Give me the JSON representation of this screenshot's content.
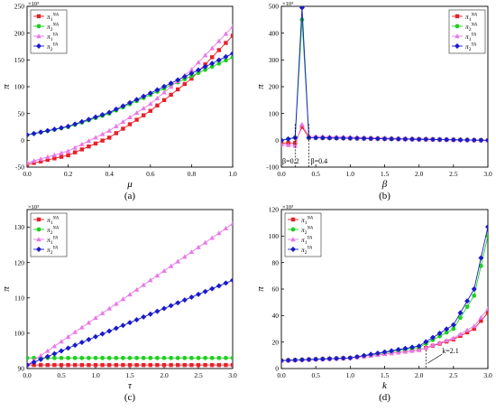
{
  "chart_data": [
    {
      "type": "line",
      "panel_label": "(a)",
      "xlabel": "μ",
      "ylabel": "π",
      "exponent": "×10³",
      "xlim": [
        0,
        1.0
      ],
      "ylim": [
        -50,
        250
      ],
      "xticks": [
        0.0,
        0.2,
        0.4,
        0.6,
        0.8,
        1.0
      ],
      "yticks": [
        -50,
        0,
        50,
        100,
        150,
        200,
        250
      ],
      "legend_position": "top-left",
      "series": [
        {
          "name": "π₁ᴺᴬ",
          "base": "π",
          "sub": "1",
          "sup": "NA",
          "color": "#e8202a",
          "marker": "square",
          "x": [
            0,
            0.2,
            0.4,
            0.6,
            0.8,
            1.0
          ],
          "y": [
            -45,
            -28,
            5,
            55,
            115,
            195
          ]
        },
        {
          "name": "π₂ᴺᴬ",
          "base": "π",
          "sub": "2",
          "sup": "NA",
          "color": "#1ed01e",
          "marker": "circle",
          "x": [
            0,
            0.2,
            0.4,
            0.6,
            0.8,
            1.0
          ],
          "y": [
            10,
            25,
            50,
            85,
            120,
            155
          ]
        },
        {
          "name": "π₁ʸᴬ",
          "base": "π",
          "sub": "1",
          "sup": "YA",
          "color": "#e878e8",
          "marker": "triangle",
          "x": [
            0,
            0.2,
            0.4,
            0.6,
            0.8,
            1.0
          ],
          "y": [
            -42,
            -20,
            18,
            68,
            132,
            212
          ]
        },
        {
          "name": "π₂ʸᴬ",
          "base": "π",
          "sub": "2",
          "sup": "YA",
          "color": "#1a1acc",
          "marker": "diamond",
          "x": [
            0,
            0.2,
            0.4,
            0.6,
            0.8,
            1.0
          ],
          "y": [
            10,
            26,
            52,
            88,
            125,
            162
          ]
        }
      ]
    },
    {
      "type": "line",
      "panel_label": "(b)",
      "xlabel": "β",
      "ylabel": "π",
      "exponent": "×10³",
      "xlim": [
        0,
        3.0
      ],
      "ylim": [
        -100,
        500
      ],
      "xticks": [
        0.0,
        0.5,
        1.0,
        1.5,
        2.0,
        2.5,
        3.0
      ],
      "yticks": [
        -100,
        0,
        100,
        200,
        300,
        400,
        500
      ],
      "legend_position": "top-right",
      "annotations": [
        "β=0.2",
        "β=0.4"
      ],
      "series": [
        {
          "name": "π₁ᴺᴬ",
          "base": "π",
          "sub": "1",
          "sup": "NA",
          "color": "#e8202a",
          "marker": "square",
          "x": [
            0,
            0.2,
            0.3,
            0.4,
            3.0
          ],
          "y": [
            -10,
            -10,
            50,
            10,
            0
          ]
        },
        {
          "name": "π₂ᴺᴬ",
          "base": "π",
          "sub": "2",
          "sup": "NA",
          "color": "#1ed01e",
          "marker": "circle",
          "x": [
            0,
            0.2,
            0.3,
            0.4,
            3.0
          ],
          "y": [
            0,
            10,
            450,
            10,
            0
          ]
        },
        {
          "name": "π₁ʸᴬ",
          "base": "π",
          "sub": "1",
          "sup": "YA",
          "color": "#e878e8",
          "marker": "triangle",
          "x": [
            0,
            0.2,
            0.3,
            0.4,
            3.0
          ],
          "y": [
            -15,
            -20,
            60,
            15,
            0
          ]
        },
        {
          "name": "π₂ʸᴬ",
          "base": "π",
          "sub": "2",
          "sup": "YA",
          "color": "#1a1acc",
          "marker": "diamond",
          "x": [
            0,
            0.2,
            0.3,
            0.4,
            3.0
          ],
          "y": [
            0,
            10,
            495,
            10,
            0
          ]
        }
      ]
    },
    {
      "type": "line",
      "panel_label": "(c)",
      "xlabel": "τ",
      "ylabel": "π",
      "exponent": "×10³",
      "xlim": [
        0,
        3.0
      ],
      "ylim": [
        90,
        135
      ],
      "xticks": [
        0.0,
        0.5,
        1.0,
        1.5,
        2.0,
        2.5,
        3.0
      ],
      "yticks": [
        90,
        100,
        110,
        120,
        130
      ],
      "legend_position": "top-left",
      "series": [
        {
          "name": "π₁ᴺᴬ",
          "base": "π",
          "sub": "1",
          "sup": "NA",
          "color": "#e8202a",
          "marker": "square",
          "x": [
            0,
            3.0
          ],
          "y": [
            91,
            91
          ]
        },
        {
          "name": "π₂ᴺᴬ",
          "base": "π",
          "sub": "2",
          "sup": "NA",
          "color": "#1ed01e",
          "marker": "circle",
          "x": [
            0,
            3.0
          ],
          "y": [
            93,
            93
          ]
        },
        {
          "name": "π₁ʸᴬ",
          "base": "π",
          "sub": "1",
          "sup": "YA",
          "color": "#e878e8",
          "marker": "triangle",
          "x": [
            0,
            3.0
          ],
          "y": [
            91,
            131
          ]
        },
        {
          "name": "π₂ʸᴬ",
          "base": "π",
          "sub": "2",
          "sup": "YA",
          "color": "#1a1acc",
          "marker": "diamond",
          "x": [
            0,
            3.0
          ],
          "y": [
            91,
            115
          ]
        }
      ]
    },
    {
      "type": "line",
      "panel_label": "(d)",
      "xlabel": "k",
      "ylabel": "π",
      "exponent": "×10³",
      "xlim": [
        0,
        3.0
      ],
      "ylim": [
        0,
        120
      ],
      "xticks": [
        0.0,
        0.5,
        1.0,
        1.5,
        2.0,
        2.5,
        3.0
      ],
      "yticks": [
        0,
        20,
        40,
        60,
        80,
        100,
        120
      ],
      "legend_position": "top-left",
      "annotations": [
        "k=2.1"
      ],
      "series": [
        {
          "name": "π₁ᴺᴬ",
          "base": "π",
          "sub": "1",
          "sup": "NA",
          "color": "#e8202a",
          "marker": "square",
          "x": [
            0,
            1.0,
            2.0,
            2.5,
            2.8,
            3.0
          ],
          "y": [
            6,
            8,
            14,
            22,
            30,
            42
          ]
        },
        {
          "name": "π₂ᴺᴬ",
          "base": "π",
          "sub": "2",
          "sup": "NA",
          "color": "#1ed01e",
          "marker": "circle",
          "x": [
            0,
            1.0,
            2.0,
            2.5,
            2.8,
            3.0
          ],
          "y": [
            6,
            8,
            16,
            30,
            55,
            100
          ]
        },
        {
          "name": "π₁ʸᴬ",
          "base": "π",
          "sub": "1",
          "sup": "YA",
          "color": "#e878e8",
          "marker": "triangle",
          "x": [
            0,
            1.0,
            2.0,
            2.5,
            2.8,
            3.0
          ],
          "y": [
            6,
            8,
            14,
            23,
            32,
            45
          ]
        },
        {
          "name": "π₂ʸᴬ",
          "base": "π",
          "sub": "2",
          "sup": "YA",
          "color": "#1a1acc",
          "marker": "diamond",
          "x": [
            0,
            1.0,
            2.0,
            2.5,
            2.8,
            3.0
          ],
          "y": [
            6,
            8,
            17,
            33,
            60,
            107
          ]
        }
      ]
    }
  ]
}
